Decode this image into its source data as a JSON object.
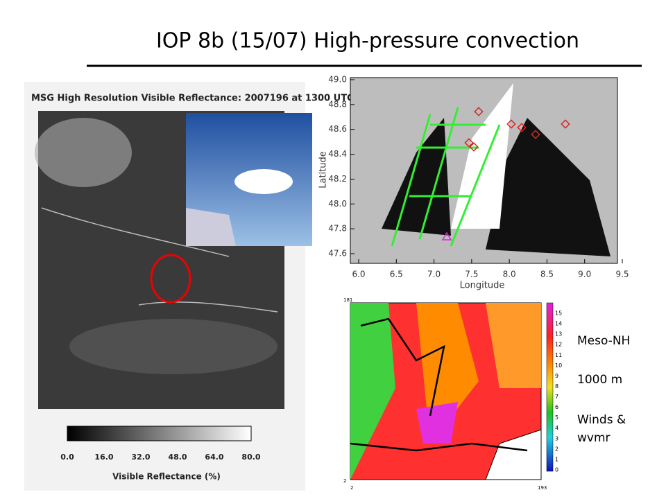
{
  "title": "IOP 8b  (15/07) High-pressure convection",
  "satellite": {
    "title": "MSG High Resolution Visible Reflectance: 2007196 at 1300 UTC",
    "colorbar_ticks": [
      "0.0",
      "16.0",
      "32.0",
      "48.0",
      "64.0",
      "80.0"
    ],
    "colorbar_label": "Visible Reflectance (%)"
  },
  "map": {
    "xlabel": "Longitude",
    "ylabel": "Latitude",
    "xticks": [
      "6.0",
      "6.5",
      "7.0",
      "7.5",
      "8.0",
      "8.5",
      "9.0",
      "9.5"
    ],
    "yticks": [
      "49.0",
      "48.8",
      "48.6",
      "48.4",
      "48.2",
      "48.0",
      "47.8",
      "47.6"
    ]
  },
  "model": {
    "corner_labels": [
      "181",
      "2",
      "2",
      "193"
    ],
    "colorbar_ticks": [
      "0",
      "1",
      "2",
      "3",
      "4",
      "5",
      "6",
      "7",
      "8",
      "9",
      "10",
      "11",
      "12",
      "13",
      "14",
      "15"
    ]
  },
  "notes": [
    "Meso-NH",
    "1000 m",
    "Winds & wvmr"
  ]
}
